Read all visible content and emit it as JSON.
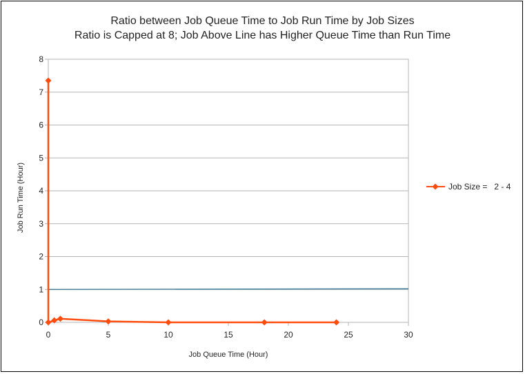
{
  "chart_data": {
    "type": "line",
    "title": "Ratio between Job Queue Time to Job Run Time by Job Sizes",
    "subtitle": "Ratio is Capped at 8; Job Above Line has Higher Queue Time than Run Time",
    "xlabel": "Job Queue Time (Hour)",
    "ylabel": "Job Run Time (Hour)",
    "xlim": [
      0,
      30
    ],
    "ylim": [
      0,
      8
    ],
    "xticks": [
      "0",
      "5",
      "10",
      "15",
      "20",
      "25",
      "30"
    ],
    "yticks": [
      "0",
      "1",
      "2",
      "3",
      "4",
      "5",
      "6",
      "7",
      "8"
    ],
    "grid": "horizontal",
    "legend_position": "right",
    "series": [
      {
        "name": "Job Size =   2 - 4",
        "color": "#ff4c0c",
        "marker": "diamond",
        "points": [
          {
            "x": 0,
            "y": 7.35
          },
          {
            "x": 0,
            "y": 0
          },
          {
            "x": 0.5,
            "y": 0.06
          },
          {
            "x": 1,
            "y": 0.11
          },
          {
            "x": 5,
            "y": 0.03
          },
          {
            "x": 10,
            "y": 0
          },
          {
            "x": 18,
            "y": 0
          },
          {
            "x": 24,
            "y": 0
          }
        ]
      }
    ],
    "reference_line": {
      "color": "#2f6f8f",
      "points": [
        {
          "x": 0,
          "y": 1.0
        },
        {
          "x": 30,
          "y": 1.02
        }
      ]
    }
  }
}
